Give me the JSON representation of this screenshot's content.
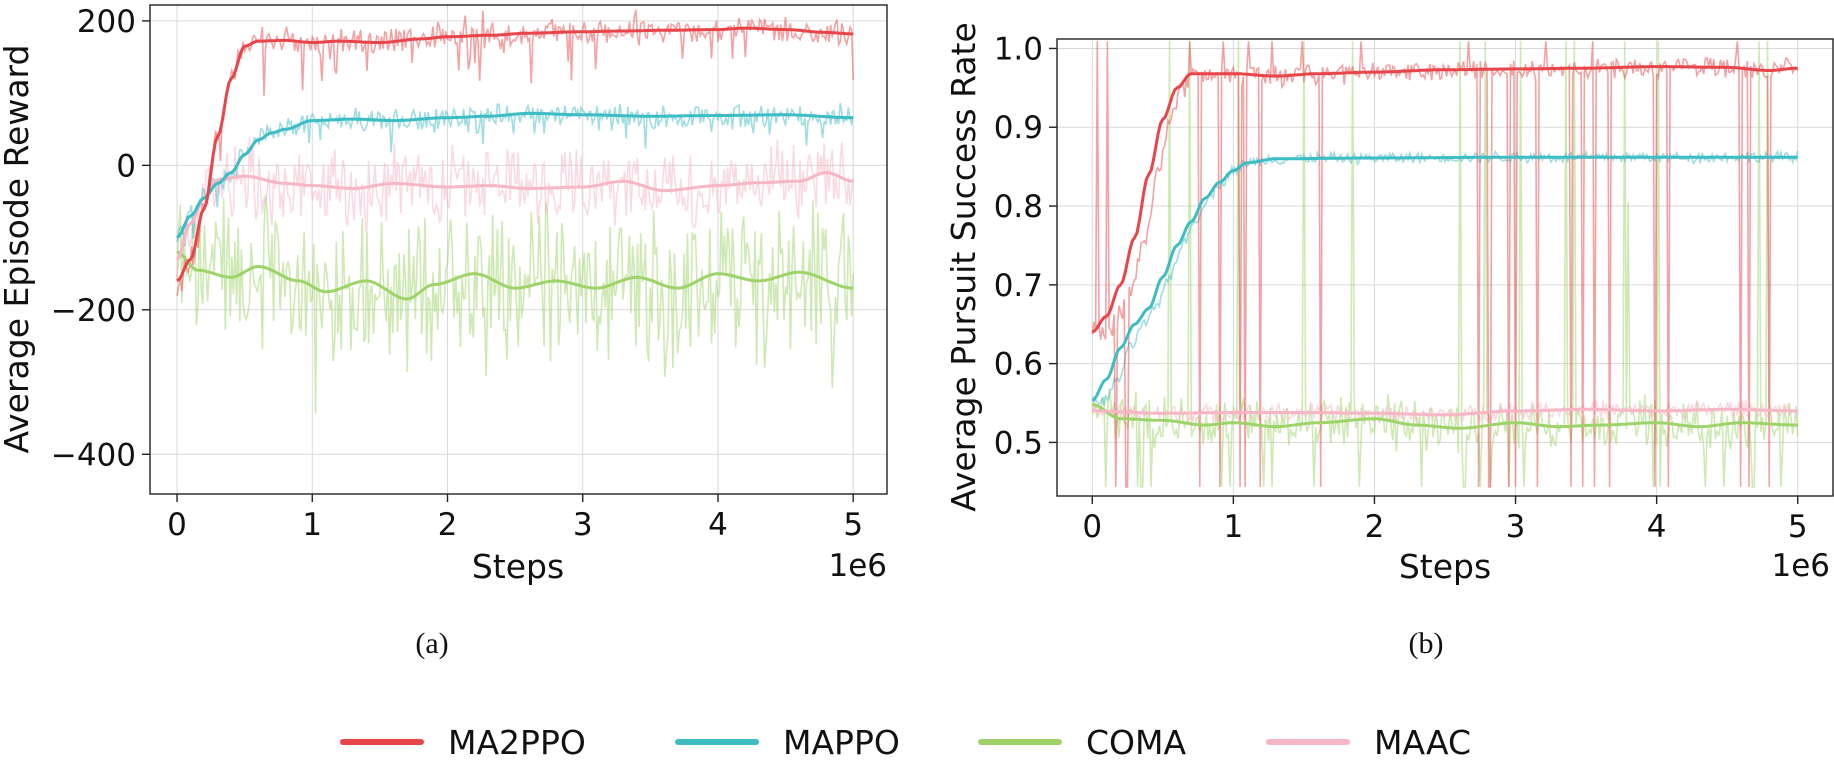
{
  "figure": {
    "legend": [
      {
        "name": "MA2PPO",
        "color": "#e8454a"
      },
      {
        "name": "MAPPO",
        "color": "#3dbcc4"
      },
      {
        "name": "COMA",
        "color": "#9ed36a"
      },
      {
        "name": "MAAC",
        "color": "#f6b6c6"
      }
    ],
    "captions": [
      "(a)",
      "(b)"
    ]
  },
  "chart_data": [
    {
      "type": "line",
      "id": "a",
      "caption": "(a)",
      "title": "",
      "xlabel": "Steps",
      "ylabel": "Average Episode Reward",
      "x_scale_label": "1e6",
      "xlim": [
        -0.2,
        5.25
      ],
      "ylim": [
        -455,
        222
      ],
      "xticks": [
        0,
        1,
        2,
        3,
        4,
        5
      ],
      "xtick_labels": [
        "0",
        "1",
        "2",
        "3",
        "4",
        "5"
      ],
      "yticks": [
        200,
        0,
        -200,
        -400
      ],
      "ytick_labels": [
        "200",
        "0",
        "−200",
        "−400"
      ],
      "grid": true,
      "series": [
        {
          "name": "MA2PPO",
          "color": "#e8454a",
          "raw_amplitude": 10,
          "raw_dips": 45,
          "smoothed": [
            [
              0,
              -160
            ],
            [
              0.1,
              -130
            ],
            [
              0.2,
              -60
            ],
            [
              0.3,
              40
            ],
            [
              0.4,
              120
            ],
            [
              0.5,
              165
            ],
            [
              0.6,
              172
            ],
            [
              0.8,
              173
            ],
            [
              1.0,
              170
            ],
            [
              1.2,
              172
            ],
            [
              1.5,
              170
            ],
            [
              1.8,
              175
            ],
            [
              2.0,
              178
            ],
            [
              2.3,
              180
            ],
            [
              2.6,
              183
            ],
            [
              3.0,
              185
            ],
            [
              3.3,
              186
            ],
            [
              3.6,
              187
            ],
            [
              4.0,
              188
            ],
            [
              4.2,
              190
            ],
            [
              4.5,
              188
            ],
            [
              4.8,
              184
            ],
            [
              5.0,
              182
            ]
          ]
        },
        {
          "name": "MAPPO",
          "color": "#3dbcc4",
          "raw_amplitude": 8,
          "raw_dips": 25,
          "smoothed": [
            [
              0,
              -100
            ],
            [
              0.1,
              -70
            ],
            [
              0.2,
              -45
            ],
            [
              0.3,
              -25
            ],
            [
              0.4,
              -10
            ],
            [
              0.5,
              15
            ],
            [
              0.6,
              35
            ],
            [
              0.7,
              45
            ],
            [
              0.8,
              50
            ],
            [
              1.0,
              62
            ],
            [
              1.3,
              64
            ],
            [
              1.6,
              62
            ],
            [
              2.0,
              66
            ],
            [
              2.3,
              68
            ],
            [
              2.6,
              72
            ],
            [
              3.0,
              70
            ],
            [
              3.5,
              68
            ],
            [
              4.0,
              69
            ],
            [
              4.5,
              70
            ],
            [
              5.0,
              66
            ]
          ]
        },
        {
          "name": "COMA",
          "color": "#9ed36a",
          "raw_amplitude": 55,
          "raw_dips": 60,
          "smoothed": [
            [
              0,
              -120
            ],
            [
              0.15,
              -145
            ],
            [
              0.4,
              -155
            ],
            [
              0.6,
              -140
            ],
            [
              0.9,
              -160
            ],
            [
              1.1,
              -175
            ],
            [
              1.4,
              -160
            ],
            [
              1.7,
              -185
            ],
            [
              1.9,
              -165
            ],
            [
              2.2,
              -150
            ],
            [
              2.5,
              -170
            ],
            [
              2.8,
              -160
            ],
            [
              3.1,
              -170
            ],
            [
              3.4,
              -155
            ],
            [
              3.7,
              -170
            ],
            [
              4.0,
              -150
            ],
            [
              4.3,
              -160
            ],
            [
              4.6,
              -148
            ],
            [
              5.0,
              -170
            ]
          ]
        },
        {
          "name": "MAAC",
          "color": "#f6b6c6",
          "raw_amplitude": 28,
          "raw_dips": 15,
          "smoothed": [
            [
              0,
              -130
            ],
            [
              0.1,
              -80
            ],
            [
              0.2,
              -45
            ],
            [
              0.3,
              -20
            ],
            [
              0.5,
              -15
            ],
            [
              0.8,
              -25
            ],
            [
              1.0,
              -28
            ],
            [
              1.3,
              -32
            ],
            [
              1.6,
              -25
            ],
            [
              2.0,
              -30
            ],
            [
              2.3,
              -28
            ],
            [
              2.6,
              -32
            ],
            [
              3.0,
              -30
            ],
            [
              3.3,
              -22
            ],
            [
              3.6,
              -35
            ],
            [
              4.0,
              -28
            ],
            [
              4.3,
              -24
            ],
            [
              4.6,
              -22
            ],
            [
              4.8,
              -10
            ],
            [
              5.0,
              -22
            ]
          ]
        }
      ]
    },
    {
      "type": "line",
      "id": "b",
      "caption": "(b)",
      "title": "",
      "xlabel": "Steps",
      "ylabel": "Average Pursuit Success Rate",
      "x_scale_label": "1e6",
      "xlim": [
        -0.25,
        5.25
      ],
      "ylim": [
        0.432,
        1.012
      ],
      "xticks": [
        0,
        1,
        2,
        3,
        4,
        5
      ],
      "xtick_labels": [
        "0",
        "1",
        "2",
        "3",
        "4",
        "5"
      ],
      "yticks": [
        1.0,
        0.9,
        0.8,
        0.7,
        0.6,
        0.5
      ],
      "ytick_labels": [
        "1.0",
        "0.9",
        "0.8",
        "0.7",
        "0.6",
        "0.5"
      ],
      "grid": true,
      "series": [
        {
          "name": "MA2PPO",
          "color": "#e8454a",
          "raw_amplitude": 0.007,
          "raw_dips": 12,
          "raw_lead": 0.12,
          "smoothed": [
            [
              0,
              0.64
            ],
            [
              0.1,
              0.66
            ],
            [
              0.2,
              0.7
            ],
            [
              0.3,
              0.76
            ],
            [
              0.4,
              0.84
            ],
            [
              0.5,
              0.91
            ],
            [
              0.6,
              0.95
            ],
            [
              0.7,
              0.968
            ],
            [
              1.0,
              0.968
            ],
            [
              1.3,
              0.965
            ],
            [
              1.6,
              0.968
            ],
            [
              2.0,
              0.97
            ],
            [
              2.5,
              0.973
            ],
            [
              3.0,
              0.974
            ],
            [
              3.5,
              0.975
            ],
            [
              4.0,
              0.977
            ],
            [
              4.5,
              0.976
            ],
            [
              4.8,
              0.972
            ],
            [
              5.0,
              0.975
            ]
          ]
        },
        {
          "name": "MAPPO",
          "color": "#3dbcc4",
          "raw_amplitude": 0.004,
          "raw_dips": 0,
          "raw_lead": 0.1,
          "smoothed": [
            [
              0,
              0.553
            ],
            [
              0.1,
              0.58
            ],
            [
              0.2,
              0.62
            ],
            [
              0.3,
              0.65
            ],
            [
              0.4,
              0.67
            ],
            [
              0.5,
              0.71
            ],
            [
              0.6,
              0.75
            ],
            [
              0.7,
              0.78
            ],
            [
              0.8,
              0.81
            ],
            [
              0.9,
              0.83
            ],
            [
              1.0,
              0.845
            ],
            [
              1.1,
              0.855
            ],
            [
              1.3,
              0.86
            ],
            [
              2.0,
              0.861
            ],
            [
              3.0,
              0.862
            ],
            [
              4.0,
              0.862
            ],
            [
              5.0,
              0.862
            ]
          ]
        },
        {
          "name": "COMA",
          "color": "#9ed36a",
          "raw_amplitude": 0.017,
          "raw_dips": 25,
          "raw_lead": 0,
          "smoothed": [
            [
              0,
              0.548
            ],
            [
              0.2,
              0.53
            ],
            [
              0.5,
              0.528
            ],
            [
              0.8,
              0.522
            ],
            [
              1.0,
              0.525
            ],
            [
              1.3,
              0.52
            ],
            [
              1.6,
              0.525
            ],
            [
              2.0,
              0.53
            ],
            [
              2.3,
              0.522
            ],
            [
              2.6,
              0.518
            ],
            [
              3.0,
              0.525
            ],
            [
              3.3,
              0.52
            ],
            [
              3.6,
              0.522
            ],
            [
              4.0,
              0.525
            ],
            [
              4.3,
              0.52
            ],
            [
              4.6,
              0.525
            ],
            [
              5.0,
              0.522
            ]
          ]
        },
        {
          "name": "MAAC",
          "color": "#f6b6c6",
          "raw_amplitude": 0.006,
          "raw_dips": 0,
          "raw_lead": 0,
          "smoothed": [
            [
              0,
              0.54
            ],
            [
              0.5,
              0.537
            ],
            [
              1.0,
              0.538
            ],
            [
              1.5,
              0.538
            ],
            [
              2.0,
              0.537
            ],
            [
              2.5,
              0.535
            ],
            [
              3.0,
              0.54
            ],
            [
              3.5,
              0.542
            ],
            [
              4.0,
              0.54
            ],
            [
              4.5,
              0.542
            ],
            [
              5.0,
              0.54
            ]
          ]
        }
      ]
    }
  ]
}
